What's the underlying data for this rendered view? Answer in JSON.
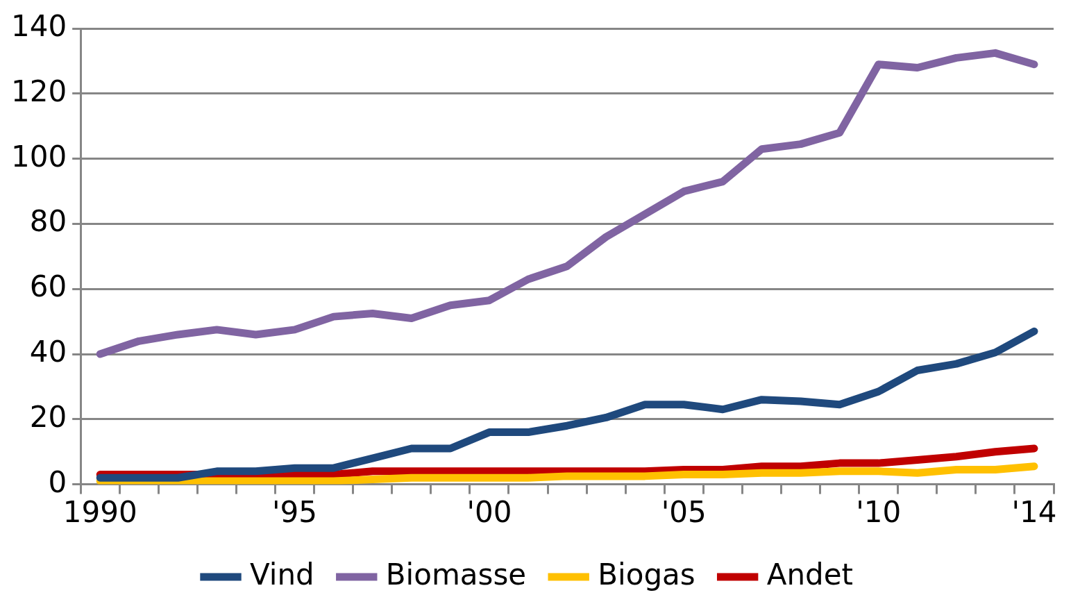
{
  "chart_data": {
    "type": "line",
    "categories": [
      "1990",
      null,
      null,
      null,
      null,
      "'95",
      null,
      null,
      null,
      null,
      "'00",
      null,
      null,
      null,
      null,
      "'05",
      null,
      null,
      null,
      null,
      "'10",
      null,
      null,
      null,
      "'14"
    ],
    "series": [
      {
        "name": "Vind",
        "color": "#1f497d",
        "values": [
          2,
          2,
          2,
          4,
          4,
          5,
          5,
          8,
          11,
          11,
          16,
          16,
          18,
          20.5,
          24.5,
          24.5,
          23,
          26,
          25.5,
          24.5,
          28.5,
          35,
          37,
          40.5,
          47
        ]
      },
      {
        "name": "Biomasse",
        "color": "#8064a2",
        "values": [
          40,
          44,
          46,
          47.5,
          46,
          47.5,
          51.5,
          52.5,
          51,
          55,
          56.5,
          63,
          67,
          76,
          83,
          90,
          93,
          103,
          104.5,
          108,
          129,
          128,
          131,
          132.5,
          129
        ]
      },
      {
        "name": "Biogas",
        "color": "#ffc000",
        "values": [
          1,
          1,
          1,
          1,
          1,
          1,
          1,
          1.5,
          2,
          2,
          2,
          2,
          2.5,
          2.5,
          2.5,
          3,
          3,
          3.5,
          3.5,
          4,
          4,
          3.5,
          4.5,
          4.5,
          5.5
        ]
      },
      {
        "name": "Andet",
        "color": "#c00000",
        "values": [
          3,
          3,
          3,
          3,
          3,
          3,
          3,
          4,
          4,
          4,
          4,
          4,
          4,
          4,
          4,
          4.5,
          4.5,
          5.5,
          5.5,
          6.5,
          6.5,
          7.5,
          8.5,
          10,
          11
        ]
      }
    ],
    "ylim": [
      0,
      140
    ],
    "yticks": [
      0,
      20,
      40,
      60,
      80,
      100,
      120,
      140
    ],
    "grid": "y",
    "legend": "bottom",
    "marker": "none",
    "line_style": "solid"
  }
}
